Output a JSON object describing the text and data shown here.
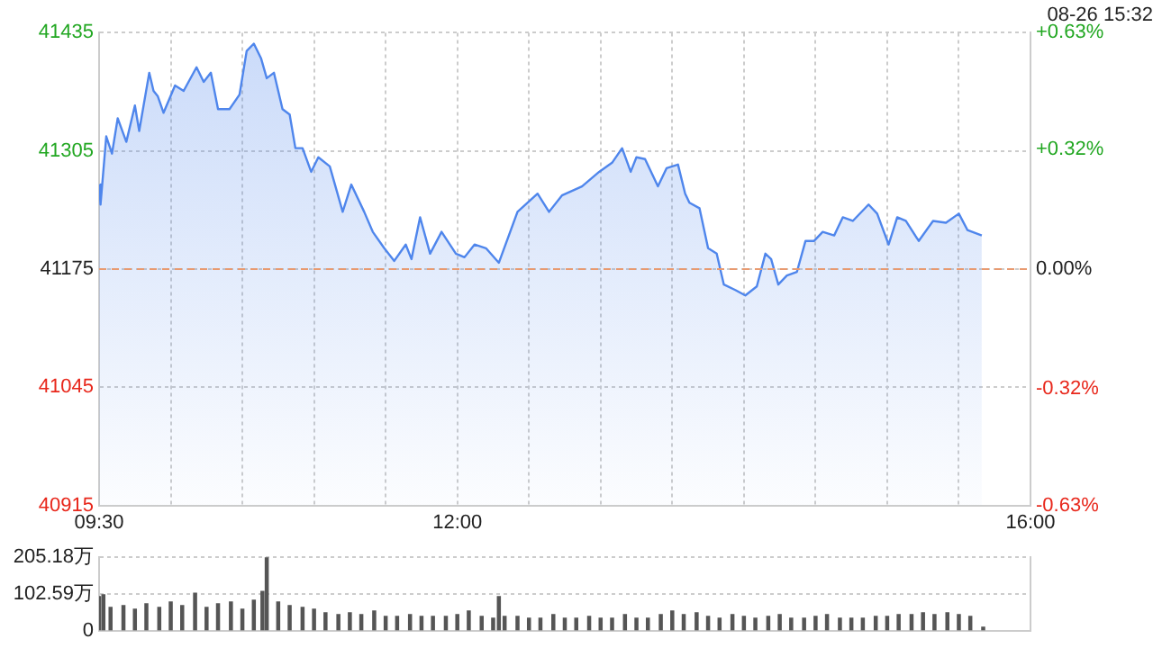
{
  "chart_data": [
    {
      "type": "area",
      "subtitle": "08-26 15:32",
      "grid": true,
      "legend": false,
      "marker": "none",
      "x": [
        9.5,
        9.51,
        9.55,
        9.59,
        9.63,
        9.69,
        9.75,
        9.78,
        9.85,
        9.88,
        9.91,
        9.95,
        10.03,
        10.09,
        10.18,
        10.23,
        10.28,
        10.33,
        10.41,
        10.48,
        10.53,
        10.58,
        10.63,
        10.67,
        10.72,
        10.78,
        10.83,
        10.87,
        10.92,
        10.98,
        11.03,
        11.11,
        11.2,
        11.26,
        11.35,
        11.41,
        11.49,
        11.56,
        11.64,
        11.68,
        11.74,
        11.81,
        11.89,
        11.99,
        12.05,
        12.12,
        12.2,
        12.29,
        12.42,
        12.56,
        12.64,
        12.73,
        12.87,
        12.99,
        13.08,
        13.15,
        13.21,
        13.25,
        13.31,
        13.4,
        13.46,
        13.54,
        13.59,
        13.62,
        13.69,
        13.75,
        13.81,
        13.86,
        13.94,
        14.01,
        14.09,
        14.15,
        14.19,
        14.24,
        14.3,
        14.37,
        14.43,
        14.49,
        14.55,
        14.63,
        14.69,
        14.76,
        14.87,
        14.93,
        15.01,
        15.07,
        15.13,
        15.22,
        15.32,
        15.41,
        15.5,
        15.56,
        15.66
      ],
      "series": [
        {
          "color": "#4f86ec",
          "values": [
            41268,
            41246,
            41321,
            41302,
            41341,
            41315,
            41355,
            41327,
            41391,
            41371,
            41365,
            41347,
            41377,
            41371,
            41397,
            41381,
            41391,
            41351,
            41351,
            41367,
            41415,
            41423,
            41407,
            41385,
            41391,
            41351,
            41345,
            41308,
            41308,
            41282,
            41298,
            41288,
            41238,
            41268,
            41238,
            41216,
            41198,
            41184,
            41202,
            41186,
            41232,
            41192,
            41216,
            41192,
            41188,
            41202,
            41198,
            41182,
            41238,
            41258,
            41238,
            41256,
            41266,
            41282,
            41292,
            41308,
            41282,
            41298,
            41296,
            41266,
            41286,
            41290,
            41258,
            41248,
            41242,
            41198,
            41192,
            41158,
            41152,
            41146,
            41156,
            41192,
            41186,
            41158,
            41168,
            41172,
            41206,
            41206,
            41216,
            41212,
            41232,
            41228,
            41246,
            41236,
            41202,
            41232,
            41228,
            41206,
            41228,
            41226,
            41236,
            41218,
            41212
          ]
        }
      ],
      "xlim": [
        9.5,
        16
      ],
      "xticks": [
        {
          "value": 9.5,
          "label": "09:30"
        },
        {
          "value": 10,
          "label": null
        },
        {
          "value": 10.5,
          "label": null
        },
        {
          "value": 11,
          "label": null
        },
        {
          "value": 11.5,
          "label": null
        },
        {
          "value": 12,
          "label": "12:00"
        },
        {
          "value": 12.5,
          "label": null
        },
        {
          "value": 13,
          "label": null
        },
        {
          "value": 13.5,
          "label": null
        },
        {
          "value": 14,
          "label": null
        },
        {
          "value": 14.5,
          "label": null
        },
        {
          "value": 15,
          "label": null
        },
        {
          "value": 15.5,
          "label": null
        },
        {
          "value": 16,
          "label": "16:00"
        }
      ],
      "ylim": [
        40915,
        41435
      ],
      "yticks": [
        40915,
        41045,
        41175,
        41305,
        41435
      ],
      "y2lim": [
        -0.63,
        0.63
      ],
      "y2ticks": [
        {
          "value": -0.63,
          "label": "-0.63%"
        },
        {
          "value": -0.32,
          "label": "-0.32%"
        },
        {
          "value": 0,
          "label": "0.00%"
        },
        {
          "value": 0.32,
          "label": "+0.32%"
        },
        {
          "value": 0.63,
          "label": "+0.63%"
        }
      ],
      "ref_lines": [
        {
          "axis": "y",
          "value": 41175,
          "color": "#e89a70",
          "line_style": "dashed"
        }
      ]
    },
    {
      "type": "bar",
      "grid": true,
      "legend": false,
      "tick_labels": "y",
      "x": [
        9.5,
        9.53,
        9.58,
        9.67,
        9.75,
        9.83,
        9.92,
        10,
        10.08,
        10.17,
        10.25,
        10.33,
        10.42,
        10.5,
        10.58,
        10.64,
        10.67,
        10.75,
        10.83,
        10.92,
        11,
        11.08,
        11.17,
        11.25,
        11.33,
        11.42,
        11.5,
        11.58,
        11.67,
        11.75,
        11.83,
        11.92,
        12,
        12.08,
        12.17,
        12.25,
        12.29,
        12.33,
        12.42,
        12.5,
        12.58,
        12.67,
        12.75,
        12.83,
        12.92,
        13,
        13.08,
        13.17,
        13.25,
        13.33,
        13.42,
        13.5,
        13.58,
        13.67,
        13.75,
        13.83,
        13.92,
        14,
        14.08,
        14.17,
        14.25,
        14.33,
        14.42,
        14.5,
        14.58,
        14.67,
        14.75,
        14.83,
        14.92,
        15,
        15.08,
        15.17,
        15.25,
        15.33,
        15.42,
        15.5,
        15.58,
        15.67
      ],
      "series": [
        {
          "color": "#555555",
          "values": [
            95,
            100,
            65,
            70,
            60,
            75,
            65,
            80,
            70,
            105,
            65,
            75,
            80,
            60,
            85,
            110,
            205,
            80,
            70,
            65,
            60,
            50,
            45,
            50,
            45,
            55,
            40,
            40,
            45,
            40,
            40,
            40,
            45,
            55,
            40,
            35,
            95,
            40,
            40,
            35,
            35,
            45,
            35,
            35,
            40,
            35,
            35,
            45,
            35,
            35,
            45,
            55,
            45,
            50,
            40,
            35,
            45,
            40,
            35,
            40,
            45,
            35,
            35,
            40,
            45,
            35,
            35,
            35,
            40,
            40,
            45,
            45,
            50,
            45,
            50,
            45,
            40,
            10
          ]
        }
      ],
      "xlim": [
        9.5,
        16
      ],
      "ylim": [
        0,
        205.18
      ],
      "yticks": [
        0,
        {
          "value": 102.59,
          "label": "102.59万"
        },
        {
          "value": 205.18,
          "label": "205.18万"
        }
      ]
    }
  ]
}
